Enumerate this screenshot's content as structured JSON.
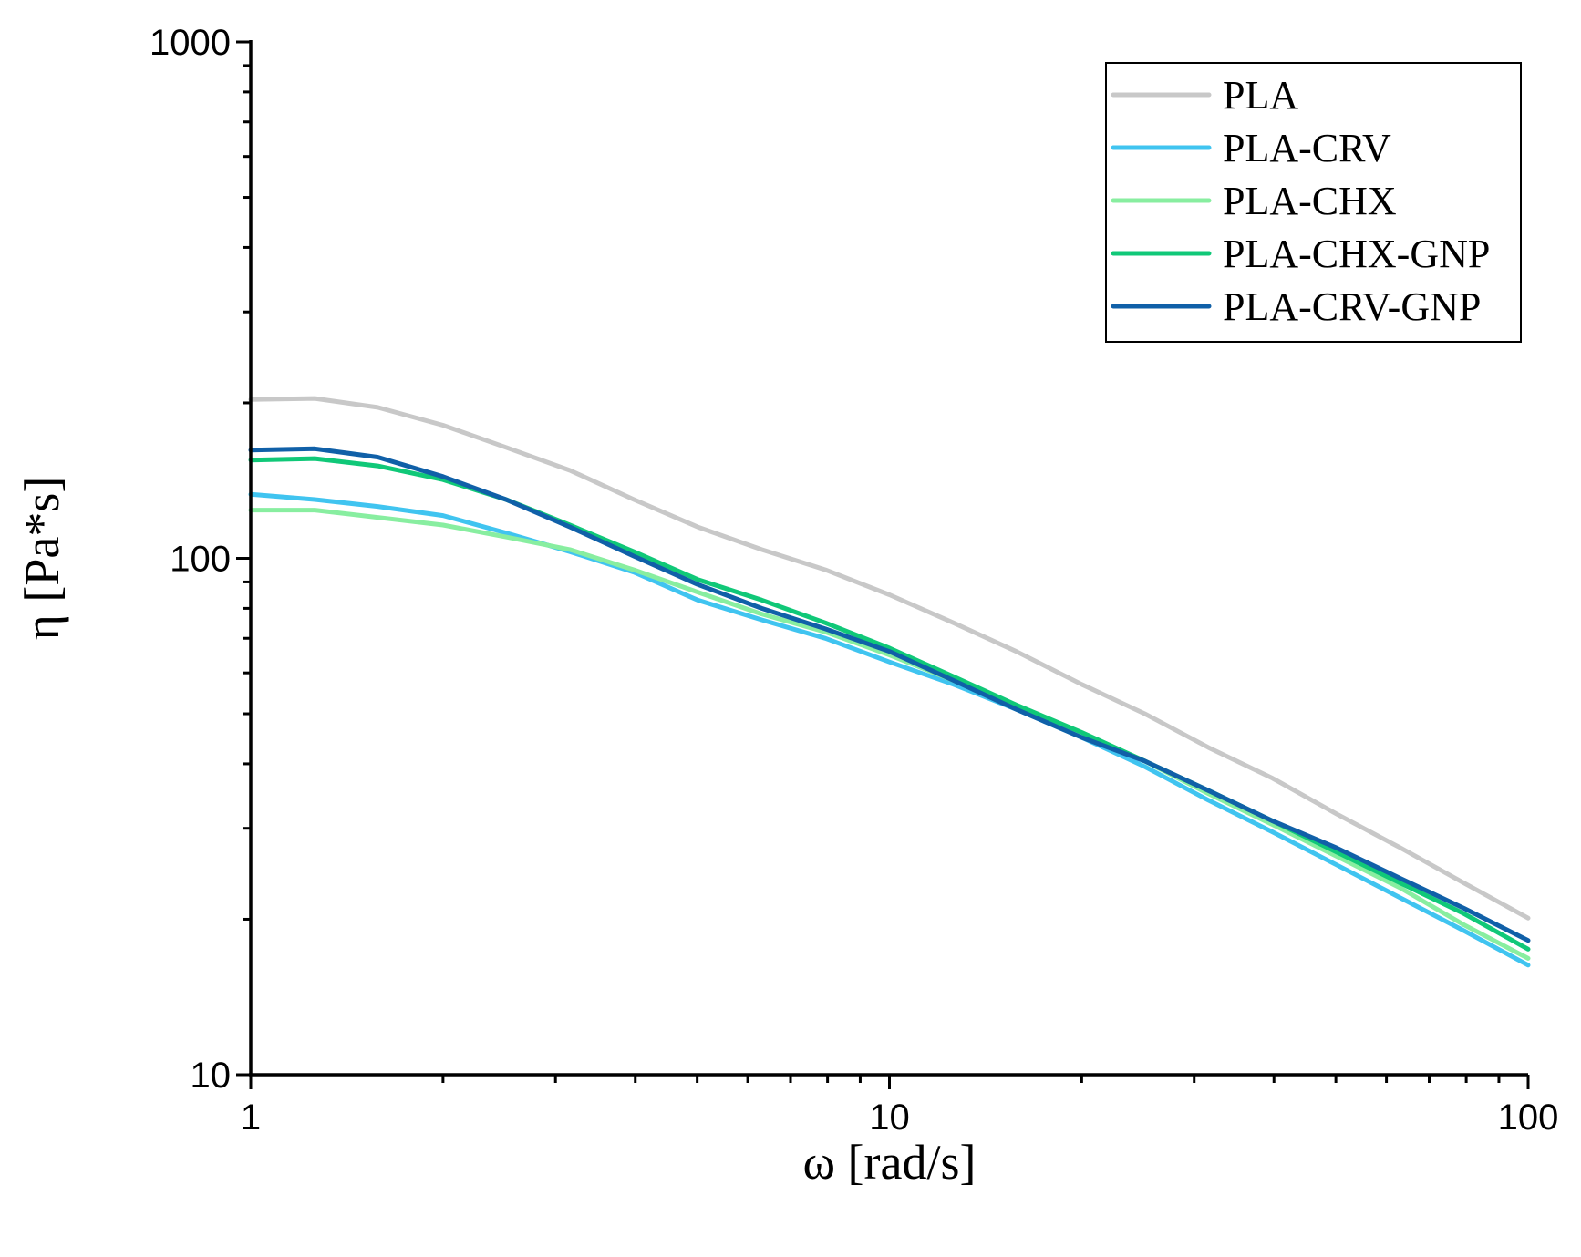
{
  "chart_data": {
    "type": "line",
    "title": "",
    "xlabel": "ω [rad/s]",
    "ylabel": "η [Pa*s]",
    "xscale": "log",
    "yscale": "log",
    "xlim": [
      1,
      100
    ],
    "ylim": [
      10,
      1000
    ],
    "x_ticks": [
      1,
      10,
      100
    ],
    "x_tick_labels": [
      "1",
      "10",
      "100"
    ],
    "y_ticks": [
      10,
      100,
      1000
    ],
    "y_tick_labels": [
      "10",
      "100",
      "1000"
    ],
    "grid": false,
    "legend_position": "top-right",
    "x": [
      1,
      1.26,
      1.58,
      2,
      2.51,
      3.16,
      3.98,
      5.01,
      6.31,
      7.94,
      10,
      12.6,
      15.8,
      20,
      25.1,
      31.6,
      39.8,
      50.1,
      63.1,
      79.4,
      100
    ],
    "series": [
      {
        "name": "PLA",
        "color": "#c8c8c8",
        "values": [
          203,
          204,
          196,
          181,
          164,
          148,
          130,
          115,
          104,
          95,
          85,
          75,
          66,
          57,
          50,
          43,
          37.5,
          32,
          27.5,
          23.5,
          20.1
        ]
      },
      {
        "name": "PLA-CRV",
        "color": "#40c4f0",
        "values": [
          133,
          130,
          126,
          121,
          112,
          103,
          94,
          83,
          76,
          70,
          63,
          57,
          51,
          45,
          39.5,
          34,
          29.5,
          25.5,
          22,
          19,
          16.3
        ]
      },
      {
        "name": "PLA-CHX",
        "color": "#88eea0",
        "values": [
          124,
          124,
          120,
          116,
          110,
          104,
          95,
          86,
          78,
          72,
          65,
          58,
          52,
          46,
          40.5,
          35,
          30.5,
          26.5,
          23,
          19.5,
          16.8
        ]
      },
      {
        "name": "PLA-CHX-GNP",
        "color": "#10c878",
        "values": [
          155,
          156,
          151,
          142,
          130,
          116,
          103,
          91,
          83,
          75,
          67,
          59,
          52,
          46,
          40.5,
          35.5,
          31,
          27,
          23.5,
          20.5,
          17.5
        ]
      },
      {
        "name": "PLA-CRV-GNP",
        "color": "#1060a8",
        "values": [
          162,
          163,
          157,
          144,
          130,
          115,
          101,
          89,
          80,
          73,
          66,
          58,
          51,
          45,
          40.5,
          35.5,
          31,
          27.5,
          24,
          21,
          18.2
        ]
      }
    ]
  }
}
